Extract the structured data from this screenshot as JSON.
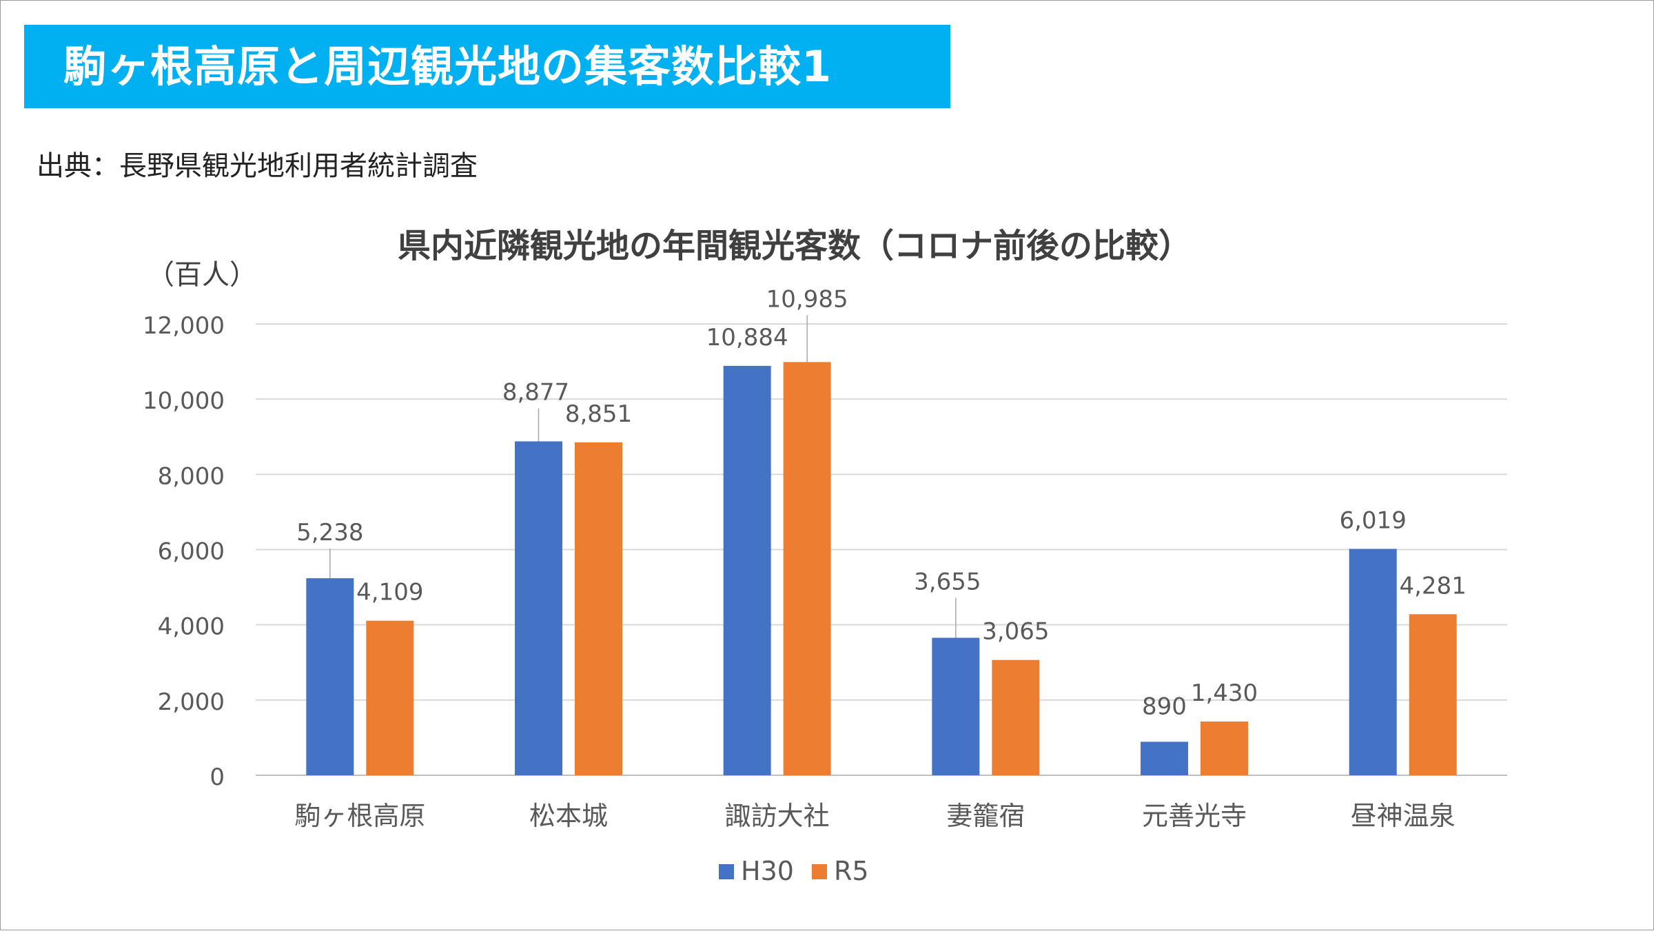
{
  "slide": {
    "title": "駒ヶ根高原と周辺観光地の集客数比較1",
    "source": "出典：長野県観光地利用者統計調査"
  },
  "colors": {
    "banner": "#00b0f0",
    "h30": "#4472c4",
    "r5": "#ed7d31",
    "grid": "#d9d9d9",
    "axis_text": "#595959"
  },
  "chart_data": {
    "type": "bar",
    "title": "県内近隣観光地の年間観光客数（コロナ前後の比較）",
    "ylabel": "（百人）",
    "xlabel": "",
    "categories": [
      "駒ヶ根高原",
      "松本城",
      "諏訪大社",
      "妻籠宿",
      "元善光寺",
      "昼神温泉"
    ],
    "series": [
      {
        "name": "H30",
        "color": "#4472c4",
        "values": [
          5238,
          8877,
          10884,
          3655,
          890,
          6019
        ],
        "labels": [
          "5,238",
          "8,877",
          "10,884",
          "3,655",
          "890",
          "6,019"
        ]
      },
      {
        "name": "R5",
        "color": "#ed7d31",
        "values": [
          4109,
          8851,
          10985,
          3065,
          1430,
          4281
        ],
        "labels": [
          "4,109",
          "8,851",
          "10,985",
          "3,065",
          "1,430",
          "4,281"
        ]
      }
    ],
    "ylim": [
      0,
      12000
    ],
    "yticks": [
      0,
      2000,
      4000,
      6000,
      8000,
      10000,
      12000
    ],
    "ytick_labels": [
      "0",
      "2,000",
      "4,000",
      "6,000",
      "8,000",
      "10,000",
      "12,000"
    ],
    "grid": true,
    "legend": "bottom"
  }
}
